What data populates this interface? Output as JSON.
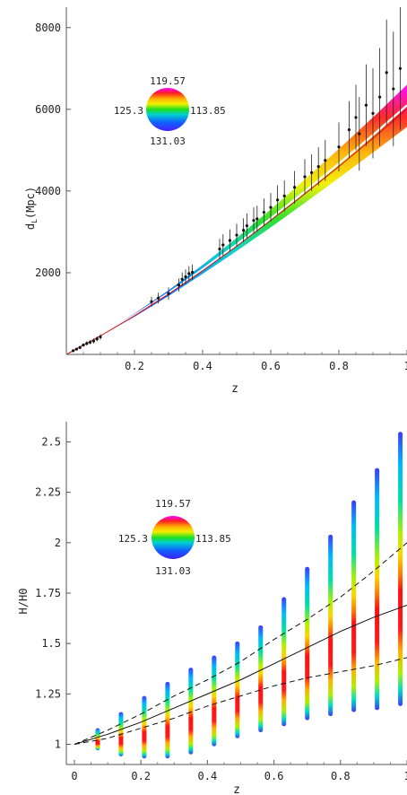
{
  "chart_data": [
    {
      "type": "scatter",
      "title": "",
      "xlabel": "z",
      "ylabel": "d",
      "ylabel_sub": "L",
      "ylabel_unit": "(Mpc)",
      "xlim": [
        0,
        1
      ],
      "ylim": [
        0,
        8500
      ],
      "xticks": [
        0.2,
        0.4,
        0.6,
        0.8,
        1
      ],
      "xtick_labels": [
        "0.2",
        "0.4",
        "0.6",
        "0.8",
        "1"
      ],
      "yticks": [
        2000,
        4000,
        6000,
        8000
      ],
      "ytick_labels": [
        "2000",
        "4000",
        "6000",
        "8000"
      ],
      "legend": {
        "placement": "upper-left",
        "top": "119.57",
        "left": "125.3",
        "right": "113.85",
        "bottom": "131.03"
      },
      "series": [
        {
          "kind": "data_points_with_errors",
          "points": [
            {
              "x": 0.02,
              "y": 90,
              "err": 30
            },
            {
              "x": 0.03,
              "y": 130,
              "err": 30
            },
            {
              "x": 0.04,
              "y": 170,
              "err": 40
            },
            {
              "x": 0.05,
              "y": 230,
              "err": 40
            },
            {
              "x": 0.06,
              "y": 270,
              "err": 50
            },
            {
              "x": 0.07,
              "y": 300,
              "err": 50
            },
            {
              "x": 0.08,
              "y": 330,
              "err": 60
            },
            {
              "x": 0.09,
              "y": 380,
              "err": 60
            },
            {
              "x": 0.1,
              "y": 430,
              "err": 70
            },
            {
              "x": 0.25,
              "y": 1290,
              "err": 120
            },
            {
              "x": 0.27,
              "y": 1380,
              "err": 130
            },
            {
              "x": 0.3,
              "y": 1490,
              "err": 150
            },
            {
              "x": 0.33,
              "y": 1700,
              "err": 160
            },
            {
              "x": 0.34,
              "y": 1840,
              "err": 170
            },
            {
              "x": 0.35,
              "y": 1900,
              "err": 180
            },
            {
              "x": 0.36,
              "y": 1980,
              "err": 180
            },
            {
              "x": 0.37,
              "y": 2010,
              "err": 190
            },
            {
              "x": 0.45,
              "y": 2580,
              "err": 250
            },
            {
              "x": 0.46,
              "y": 2680,
              "err": 260
            },
            {
              "x": 0.48,
              "y": 2790,
              "err": 270
            },
            {
              "x": 0.5,
              "y": 2920,
              "err": 280
            },
            {
              "x": 0.52,
              "y": 3040,
              "err": 290
            },
            {
              "x": 0.53,
              "y": 3150,
              "err": 300
            },
            {
              "x": 0.55,
              "y": 3280,
              "err": 320
            },
            {
              "x": 0.56,
              "y": 3320,
              "err": 320
            },
            {
              "x": 0.58,
              "y": 3480,
              "err": 340
            },
            {
              "x": 0.6,
              "y": 3600,
              "err": 350
            },
            {
              "x": 0.62,
              "y": 3780,
              "err": 360
            },
            {
              "x": 0.64,
              "y": 3880,
              "err": 380
            },
            {
              "x": 0.67,
              "y": 4090,
              "err": 400
            },
            {
              "x": 0.7,
              "y": 4350,
              "err": 430
            },
            {
              "x": 0.72,
              "y": 4450,
              "err": 450
            },
            {
              "x": 0.74,
              "y": 4600,
              "err": 470
            },
            {
              "x": 0.76,
              "y": 4750,
              "err": 500
            },
            {
              "x": 0.8,
              "y": 5080,
              "err": 600
            },
            {
              "x": 0.83,
              "y": 5500,
              "err": 700
            },
            {
              "x": 0.85,
              "y": 5800,
              "err": 800
            },
            {
              "x": 0.86,
              "y": 5400,
              "err": 900
            },
            {
              "x": 0.88,
              "y": 6100,
              "err": 1000
            },
            {
              "x": 0.9,
              "y": 5900,
              "err": 1100
            },
            {
              "x": 0.92,
              "y": 6300,
              "err": 1200
            },
            {
              "x": 0.94,
              "y": 6900,
              "err": 1300
            },
            {
              "x": 0.96,
              "y": 6500,
              "err": 1400
            },
            {
              "x": 0.98,
              "y": 7000,
              "err": 1500
            }
          ]
        },
        {
          "kind": "model_band",
          "x": [
            0,
            0.1,
            0.2,
            0.3,
            0.4,
            0.5,
            0.6,
            0.7,
            0.8,
            0.9,
            1.0
          ],
          "y_center": [
            0,
            460,
            960,
            1500,
            2080,
            2690,
            3330,
            3990,
            4670,
            5370,
            6100
          ],
          "y_low": [
            0,
            450,
            920,
            1430,
            1970,
            2530,
            3110,
            3710,
            4320,
            4940,
            5570
          ],
          "y_high": [
            0,
            470,
            1000,
            1570,
            2190,
            2850,
            3550,
            4280,
            5030,
            5800,
            6600
          ]
        }
      ]
    },
    {
      "type": "scatter",
      "title": "",
      "xlabel": "z",
      "ylabel": "H/H0",
      "xlim": [
        0,
        1
      ],
      "ylim": [
        0.9,
        2.6
      ],
      "xticks": [
        0,
        0.2,
        0.4,
        0.6,
        0.8,
        1
      ],
      "xtick_labels": [
        "0",
        "0.2",
        "0.4",
        "0.6",
        "0.8",
        "1"
      ],
      "yticks": [
        1,
        1.25,
        1.5,
        1.75,
        2,
        2.25,
        2.5
      ],
      "ytick_labels": [
        "1",
        "1.25",
        "1.5",
        "1.75",
        "2",
        "2.25",
        "2.5"
      ],
      "legend": {
        "placement": "upper-left",
        "top": "119.57",
        "left": "125.3",
        "right": "113.85",
        "bottom": "131.03"
      },
      "series": [
        {
          "kind": "colored_vertical_bars",
          "x": [
            0.07,
            0.14,
            0.21,
            0.28,
            0.35,
            0.42,
            0.49,
            0.56,
            0.63,
            0.7,
            0.77,
            0.84,
            0.91,
            0.98
          ],
          "y_low": [
            0.97,
            0.94,
            0.93,
            0.93,
            0.95,
            0.99,
            1.03,
            1.06,
            1.09,
            1.12,
            1.14,
            1.16,
            1.17,
            1.19
          ],
          "y_high": [
            1.08,
            1.16,
            1.24,
            1.31,
            1.38,
            1.44,
            1.51,
            1.59,
            1.73,
            1.88,
            2.04,
            2.21,
            2.37,
            2.55
          ]
        },
        {
          "kind": "solid_line",
          "x": [
            0,
            0.1,
            0.2,
            0.3,
            0.4,
            0.5,
            0.6,
            0.7,
            0.8,
            0.9,
            1.0
          ],
          "y": [
            1,
            1.05,
            1.11,
            1.18,
            1.25,
            1.32,
            1.4,
            1.48,
            1.56,
            1.63,
            1.69
          ]
        },
        {
          "kind": "dashed_line",
          "x": [
            0,
            0.1,
            0.2,
            0.3,
            0.4,
            0.5,
            0.6,
            0.7,
            0.8,
            0.9,
            1.0
          ],
          "y": [
            1,
            1.07,
            1.15,
            1.24,
            1.32,
            1.41,
            1.52,
            1.62,
            1.73,
            1.86,
            2.0
          ]
        },
        {
          "kind": "dashed_line",
          "x": [
            0,
            0.1,
            0.2,
            0.3,
            0.4,
            0.5,
            0.6,
            0.7,
            0.8,
            0.9,
            1.0
          ],
          "y": [
            1,
            1.03,
            1.08,
            1.13,
            1.19,
            1.24,
            1.29,
            1.33,
            1.36,
            1.39,
            1.43
          ]
        }
      ]
    }
  ]
}
